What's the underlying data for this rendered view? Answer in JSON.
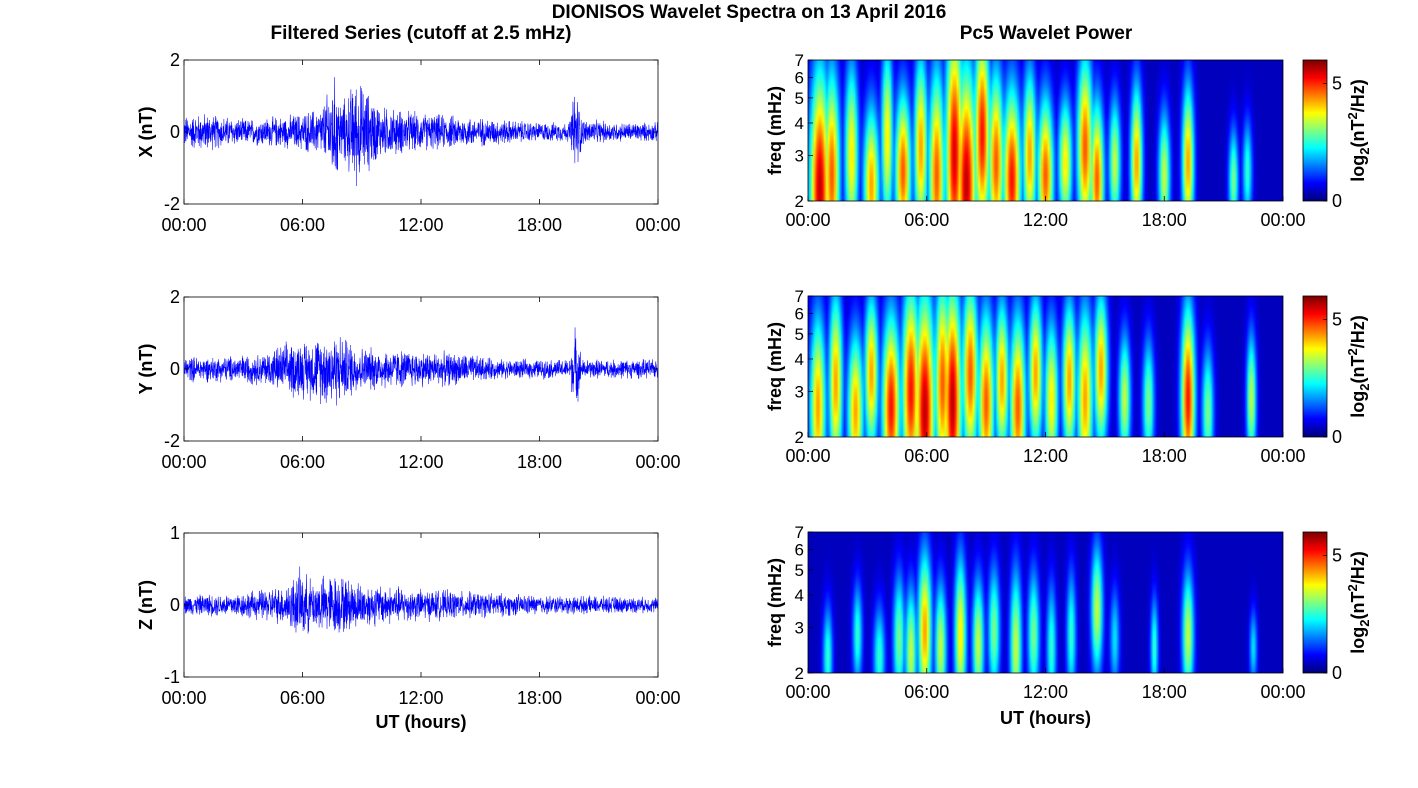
{
  "figure": {
    "title": "DIONISOS Wavelet Spectra on 13 April 2016",
    "left_title": "Filtered Series (cutoff at 2.5 mHz)",
    "right_title": "Pc5 Wavelet Power"
  },
  "colors": {
    "trace": "#0000ff",
    "colormap": "jet",
    "background_low": "#00008f"
  },
  "chart_data": [
    {
      "type": "line",
      "component": "X",
      "ylabel": "X (nT)",
      "ylim": [
        -2,
        2
      ],
      "yticks": [
        "2",
        "0",
        "-2"
      ],
      "xticks": [
        "00:00",
        "06:00",
        "12:00",
        "18:00",
        "00:00"
      ],
      "xlabel": "",
      "xlim_hours": [
        0,
        24
      ],
      "envelope": [
        [
          0,
          0.5
        ],
        [
          1,
          0.6
        ],
        [
          3,
          0.4
        ],
        [
          5,
          0.5
        ],
        [
          6,
          0.6
        ],
        [
          7,
          0.8
        ],
        [
          7.6,
          1.8
        ],
        [
          8,
          0.9
        ],
        [
          8.7,
          1.7
        ],
        [
          10,
          0.8
        ],
        [
          12,
          0.6
        ],
        [
          14,
          0.5
        ],
        [
          16,
          0.4
        ],
        [
          18,
          0.3
        ],
        [
          19.5,
          0.3
        ],
        [
          19.8,
          1.5
        ],
        [
          20.2,
          0.4
        ],
        [
          22,
          0.3
        ],
        [
          24,
          0.3
        ]
      ]
    },
    {
      "type": "line",
      "component": "Y",
      "ylabel": "Y (nT)",
      "ylim": [
        -2,
        2
      ],
      "yticks": [
        "2",
        "0",
        "-2"
      ],
      "xticks": [
        "00:00",
        "06:00",
        "12:00",
        "18:00",
        "00:00"
      ],
      "xlabel": "",
      "xlim_hours": [
        0,
        24
      ],
      "envelope": [
        [
          0,
          0.4
        ],
        [
          2,
          0.4
        ],
        [
          4,
          0.5
        ],
        [
          5.5,
          0.9
        ],
        [
          6.2,
          0.9
        ],
        [
          7.6,
          1.2
        ],
        [
          9,
          0.7
        ],
        [
          11,
          0.6
        ],
        [
          14,
          0.5
        ],
        [
          16,
          0.3
        ],
        [
          19.5,
          0.3
        ],
        [
          19.8,
          1.3
        ],
        [
          20.2,
          0.3
        ],
        [
          24,
          0.3
        ]
      ]
    },
    {
      "type": "line",
      "component": "Z",
      "ylabel": "Z (nT)",
      "ylim": [
        -1,
        1
      ],
      "yticks": [
        "1",
        "0",
        "-1"
      ],
      "xticks": [
        "00:00",
        "06:00",
        "12:00",
        "18:00",
        "00:00"
      ],
      "xlabel": "UT (hours)",
      "xlim_hours": [
        0,
        24
      ],
      "envelope": [
        [
          0,
          0.15
        ],
        [
          3,
          0.2
        ],
        [
          5,
          0.3
        ],
        [
          5.9,
          0.55
        ],
        [
          6.5,
          0.4
        ],
        [
          7.6,
          0.5
        ],
        [
          9,
          0.35
        ],
        [
          12,
          0.25
        ],
        [
          15,
          0.2
        ],
        [
          18,
          0.15
        ],
        [
          24,
          0.12
        ]
      ]
    },
    {
      "type": "heatmap",
      "component": "X",
      "ylabel": "freq (mHz)",
      "ylim_mhz": [
        2,
        7
      ],
      "yscale": "log",
      "yticks": [
        "7",
        "6",
        "5",
        "4",
        "3",
        "2"
      ],
      "xticks": [
        "00:00",
        "06:00",
        "12:00",
        "18:00",
        "00:00"
      ],
      "xlabel": "",
      "colorbar_label": "log2(nT²/Hz)",
      "colorbar_ticks": [
        "5",
        "0"
      ],
      "clim": [
        0,
        6
      ],
      "bursts": [
        [
          0.6,
          2.2,
          4.5,
          0.5,
          6
        ],
        [
          1.2,
          2.5,
          4.0,
          0.4,
          5
        ],
        [
          2.2,
          3.0,
          3.5,
          0.35,
          4
        ],
        [
          3.2,
          2.3,
          3.0,
          0.4,
          4.5
        ],
        [
          4.0,
          3.5,
          3.5,
          0.3,
          4
        ],
        [
          4.8,
          2.6,
          3.0,
          0.4,
          5
        ],
        [
          5.7,
          3.2,
          3.5,
          0.35,
          4.5
        ],
        [
          6.5,
          2.5,
          4.0,
          0.4,
          5
        ],
        [
          7.4,
          3.0,
          5.0,
          0.45,
          5.8
        ],
        [
          8.0,
          2.3,
          4.5,
          0.5,
          6
        ],
        [
          8.8,
          3.6,
          4.0,
          0.4,
          5.5
        ],
        [
          9.5,
          2.8,
          3.5,
          0.4,
          5
        ],
        [
          10.3,
          2.4,
          3.5,
          0.45,
          5.5
        ],
        [
          11.2,
          3.0,
          3.2,
          0.35,
          4.5
        ],
        [
          12.0,
          2.5,
          3.0,
          0.4,
          5
        ],
        [
          13.0,
          2.8,
          2.5,
          0.35,
          4
        ],
        [
          14.0,
          3.2,
          3.5,
          0.4,
          5
        ],
        [
          14.6,
          2.4,
          3.0,
          0.35,
          5
        ],
        [
          15.5,
          2.8,
          2.5,
          0.3,
          3.5
        ],
        [
          16.6,
          2.8,
          3.0,
          0.3,
          4.5
        ],
        [
          18.0,
          2.5,
          2.5,
          0.3,
          3.5
        ],
        [
          19.2,
          2.8,
          3.0,
          0.3,
          4.5
        ],
        [
          21.5,
          2.4,
          2.0,
          0.25,
          3
        ],
        [
          22.2,
          2.6,
          2.0,
          0.25,
          2.5
        ]
      ]
    },
    {
      "type": "heatmap",
      "component": "Y",
      "ylabel": "freq (mHz)",
      "ylim_mhz": [
        2,
        7
      ],
      "yscale": "log",
      "yticks": [
        "7",
        "6",
        "5",
        "4",
        "3",
        "2"
      ],
      "xticks": [
        "00:00",
        "06:00",
        "12:00",
        "18:00",
        "00:00"
      ],
      "xlabel": "",
      "colorbar_label": "log2(nT²/Hz)",
      "colorbar_ticks": [
        "5",
        "0"
      ],
      "clim": [
        0,
        6
      ],
      "bursts": [
        [
          0.5,
          2.6,
          3.5,
          0.4,
          4.5
        ],
        [
          1.4,
          3.2,
          3.5,
          0.35,
          4.5
        ],
        [
          2.4,
          2.5,
          3.0,
          0.4,
          4.5
        ],
        [
          3.2,
          3.5,
          3.0,
          0.35,
          4.5
        ],
        [
          4.2,
          2.6,
          3.5,
          0.45,
          5.5
        ],
        [
          5.2,
          3.0,
          4.0,
          0.45,
          5.5
        ],
        [
          5.9,
          2.5,
          4.5,
          0.5,
          6
        ],
        [
          6.8,
          3.2,
          4.0,
          0.4,
          5
        ],
        [
          7.3,
          2.7,
          4.5,
          0.45,
          6
        ],
        [
          8.2,
          3.5,
          3.5,
          0.4,
          5
        ],
        [
          9.0,
          2.7,
          3.5,
          0.4,
          5
        ],
        [
          9.8,
          3.3,
          3.0,
          0.35,
          4.5
        ],
        [
          10.6,
          2.6,
          3.5,
          0.4,
          5
        ],
        [
          11.5,
          3.5,
          3.0,
          0.35,
          4.5
        ],
        [
          12.3,
          2.8,
          3.0,
          0.35,
          4
        ],
        [
          13.2,
          3.3,
          3.0,
          0.35,
          4.5
        ],
        [
          14.0,
          2.8,
          3.5,
          0.4,
          4.5
        ],
        [
          14.8,
          3.6,
          3.0,
          0.35,
          4.5
        ],
        [
          16.0,
          2.8,
          2.5,
          0.3,
          3.5
        ],
        [
          17.2,
          2.7,
          2.5,
          0.3,
          3
        ],
        [
          19.2,
          2.8,
          3.5,
          0.35,
          5.5
        ],
        [
          20.2,
          2.5,
          2.5,
          0.3,
          3
        ],
        [
          22.4,
          2.8,
          2.5,
          0.25,
          3.5
        ]
      ]
    },
    {
      "type": "heatmap",
      "component": "Z",
      "ylabel": "freq (mHz)",
      "ylim_mhz": [
        2,
        7
      ],
      "yscale": "log",
      "yticks": [
        "7",
        "6",
        "5",
        "4",
        "3",
        "2"
      ],
      "xticks": [
        "00:00",
        "06:00",
        "12:00",
        "18:00",
        "00:00"
      ],
      "xlabel": "UT (hours)",
      "colorbar_label": "log2(nT²/Hz)",
      "colorbar_ticks": [
        "5",
        "0"
      ],
      "clim": [
        0,
        6
      ],
      "bursts": [
        [
          1.0,
          2.3,
          2.0,
          0.25,
          2.5
        ],
        [
          2.5,
          2.8,
          2.0,
          0.25,
          2.5
        ],
        [
          3.6,
          2.3,
          2.0,
          0.3,
          2.5
        ],
        [
          4.6,
          2.7,
          2.5,
          0.3,
          3
        ],
        [
          5.2,
          2.4,
          2.5,
          0.3,
          3.5
        ],
        [
          5.9,
          2.9,
          3.0,
          0.35,
          4.5
        ],
        [
          6.7,
          2.5,
          2.5,
          0.3,
          3.5
        ],
        [
          7.7,
          2.8,
          3.0,
          0.3,
          4
        ],
        [
          8.6,
          2.6,
          2.5,
          0.3,
          3.5
        ],
        [
          9.4,
          2.9,
          2.5,
          0.3,
          3
        ],
        [
          10.5,
          2.5,
          3.0,
          0.3,
          3.5
        ],
        [
          11.4,
          2.8,
          2.5,
          0.3,
          3
        ],
        [
          12.3,
          2.5,
          2.5,
          0.25,
          2.5
        ],
        [
          13.3,
          2.8,
          2.5,
          0.25,
          2.5
        ],
        [
          14.6,
          3.5,
          2.5,
          0.3,
          3.5
        ],
        [
          15.5,
          2.7,
          2.0,
          0.25,
          2
        ],
        [
          17.5,
          2.5,
          2.0,
          0.2,
          2.5
        ],
        [
          19.2,
          2.8,
          2.5,
          0.3,
          3.5
        ],
        [
          22.5,
          2.5,
          1.5,
          0.2,
          2
        ]
      ]
    }
  ]
}
